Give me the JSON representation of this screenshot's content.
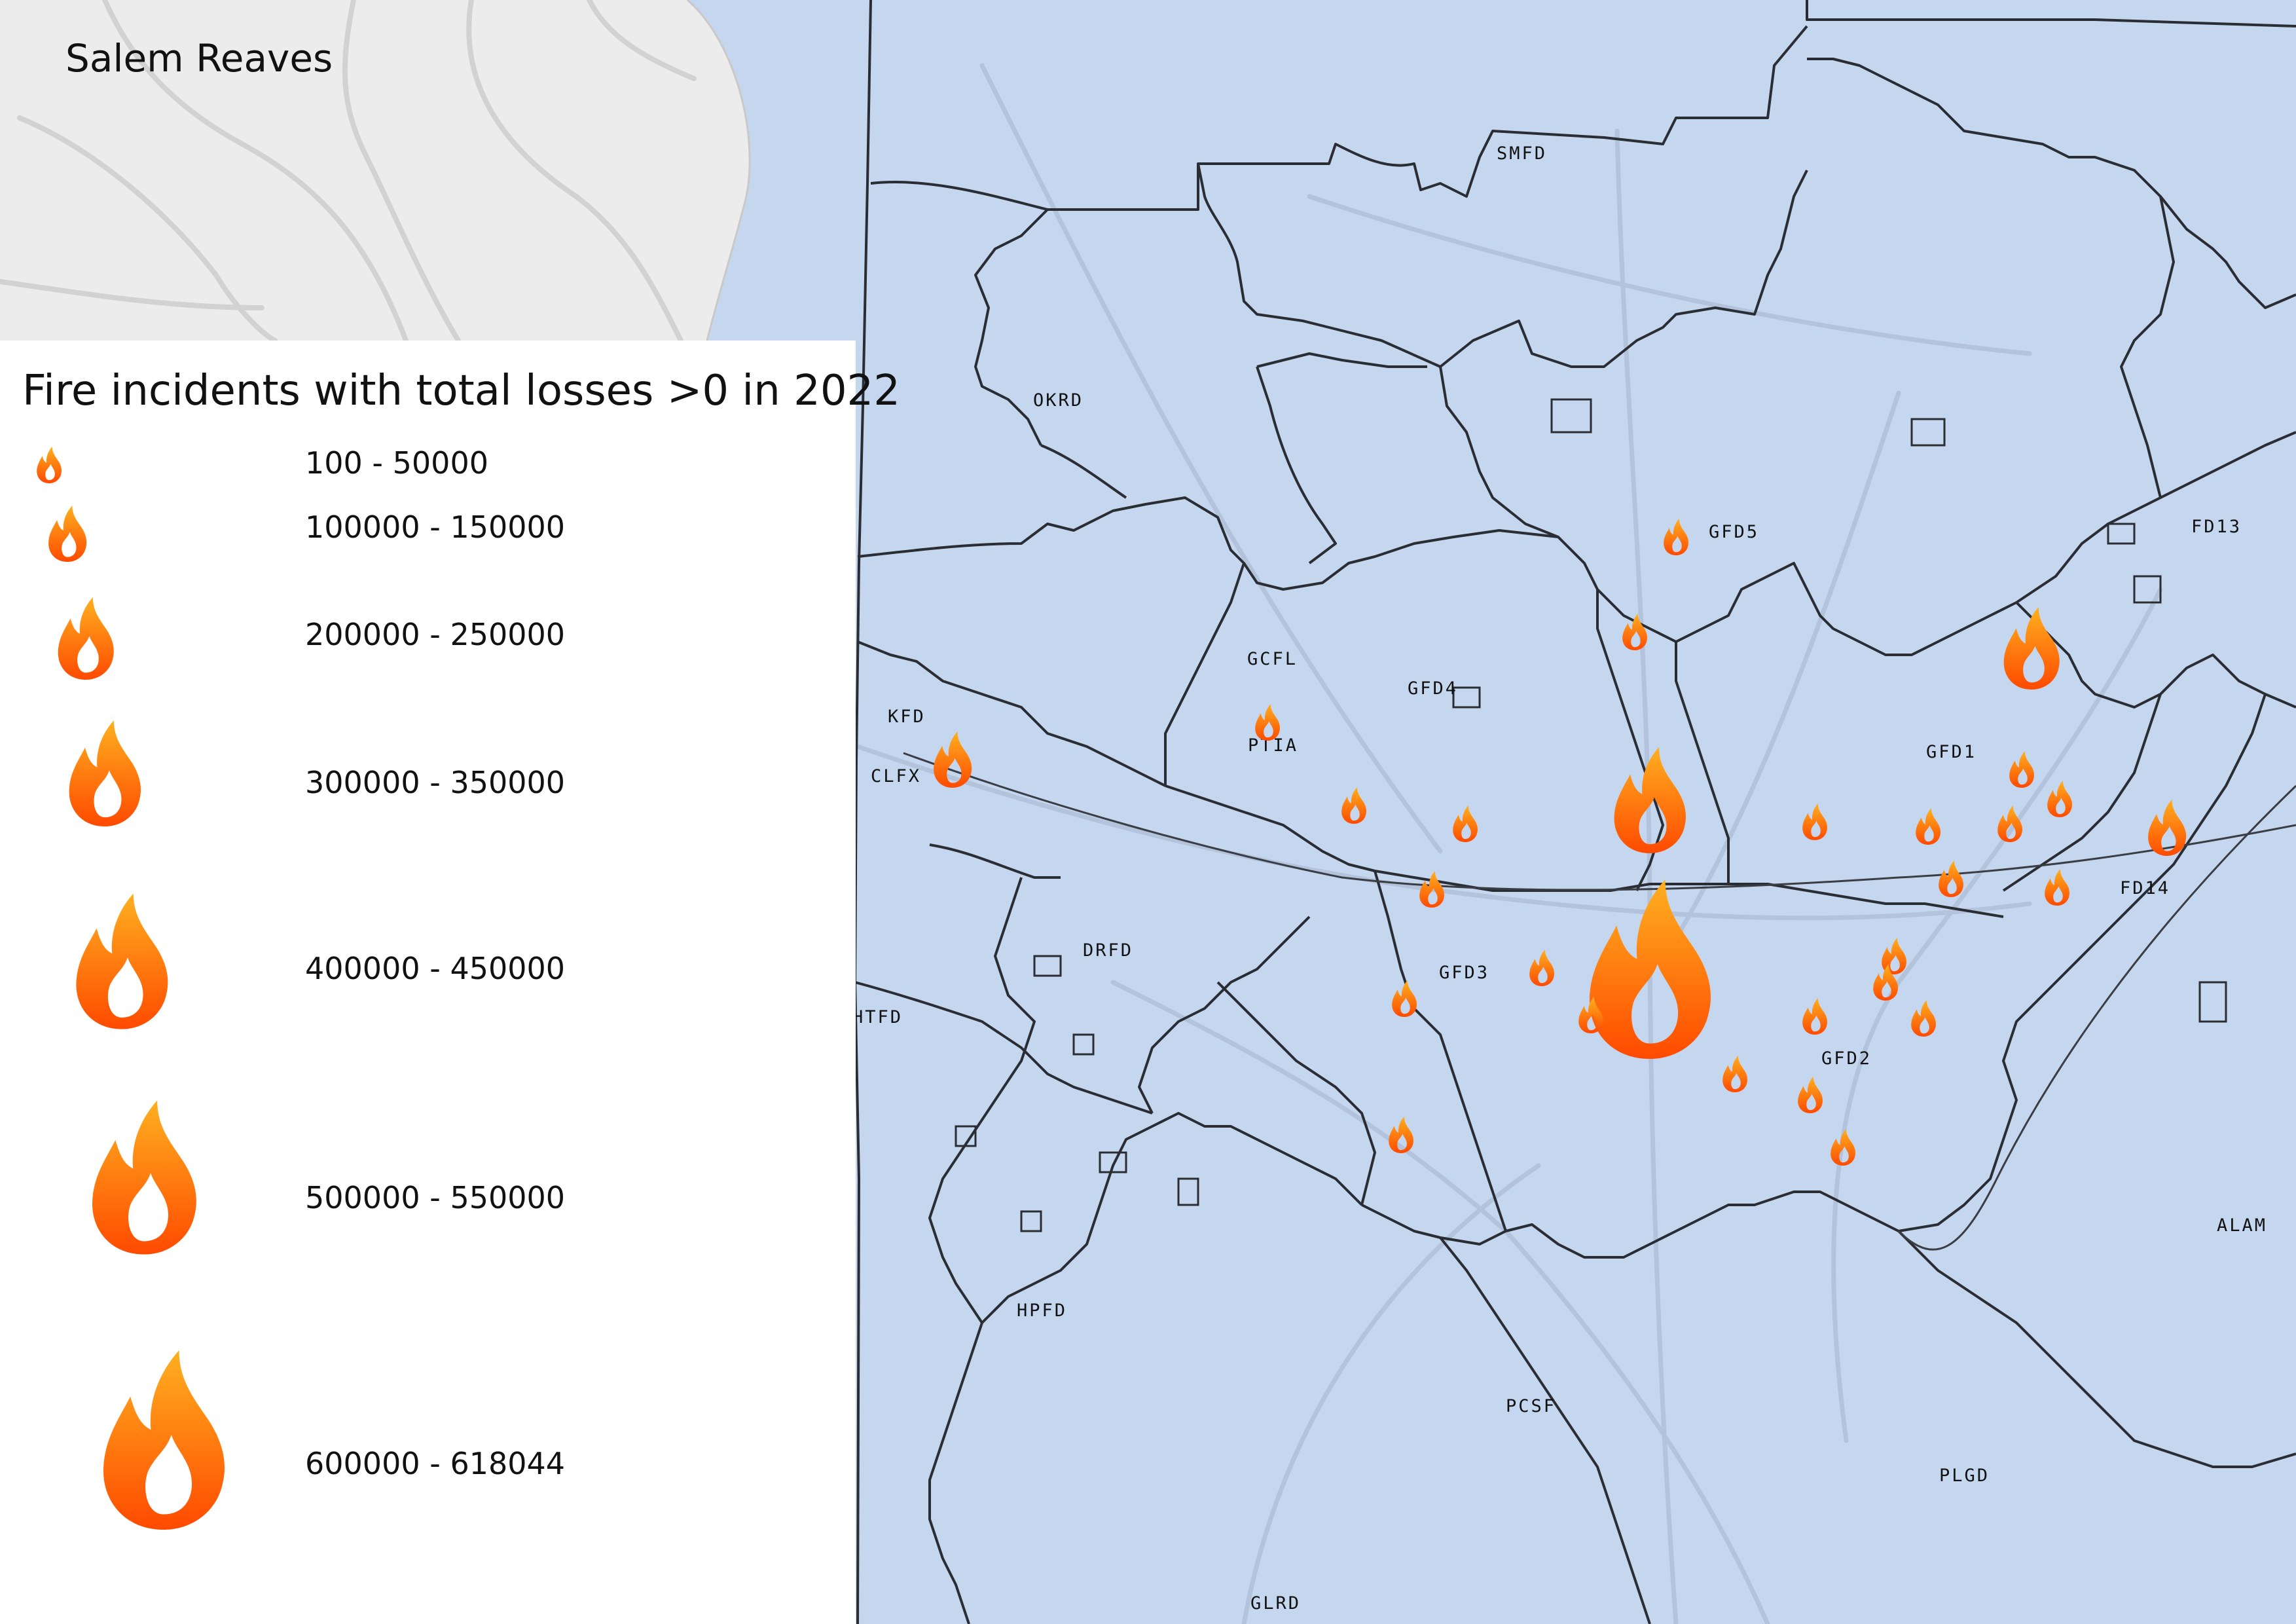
{
  "map": {
    "author": "Salem Reaves",
    "district_labels": [
      {
        "id": "smfd",
        "text": "SMFD"
      },
      {
        "id": "okrd",
        "text": "OKRD"
      },
      {
        "id": "gfd5",
        "text": "GFD5"
      },
      {
        "id": "fd13",
        "text": "FD13"
      },
      {
        "id": "gcfl",
        "text": "GCFL"
      },
      {
        "id": "gfd4",
        "text": "GFD4"
      },
      {
        "id": "kfd",
        "text": "KFD"
      },
      {
        "id": "ptia",
        "text": "PTIA"
      },
      {
        "id": "clfx",
        "text": "CLFX"
      },
      {
        "id": "gfd1",
        "text": "GFD1"
      },
      {
        "id": "fd14",
        "text": "FD14"
      },
      {
        "id": "drfd",
        "text": "DRFD"
      },
      {
        "id": "gfd3",
        "text": "GFD3"
      },
      {
        "id": "htfd",
        "text": "HTFD"
      },
      {
        "id": "gfd2",
        "text": "GFD2"
      },
      {
        "id": "alam",
        "text": "ALAM"
      },
      {
        "id": "hpfd",
        "text": "HPFD"
      },
      {
        "id": "pcsf",
        "text": "PCSF"
      },
      {
        "id": "plgd",
        "text": "PLGD"
      },
      {
        "id": "glrd",
        "text": "GLRD"
      }
    ],
    "fire_icon": "fire-icon",
    "colors": {
      "water_district": "#c5d6ef",
      "basemap": "#ececec",
      "boundary": "#2a2d33",
      "flame_top": "#ff9a1f",
      "flame_bottom": "#ff4d00"
    }
  },
  "legend": {
    "title": "Fire incidents with total losses >0 in 2022",
    "classes": [
      {
        "label": "100 - 50000"
      },
      {
        "label": "100000 - 150000"
      },
      {
        "label": "200000 - 250000"
      },
      {
        "label": "300000 - 350000"
      },
      {
        "label": "400000 - 450000"
      },
      {
        "label": "500000 - 550000"
      },
      {
        "label": "600000 - 618044"
      }
    ]
  }
}
